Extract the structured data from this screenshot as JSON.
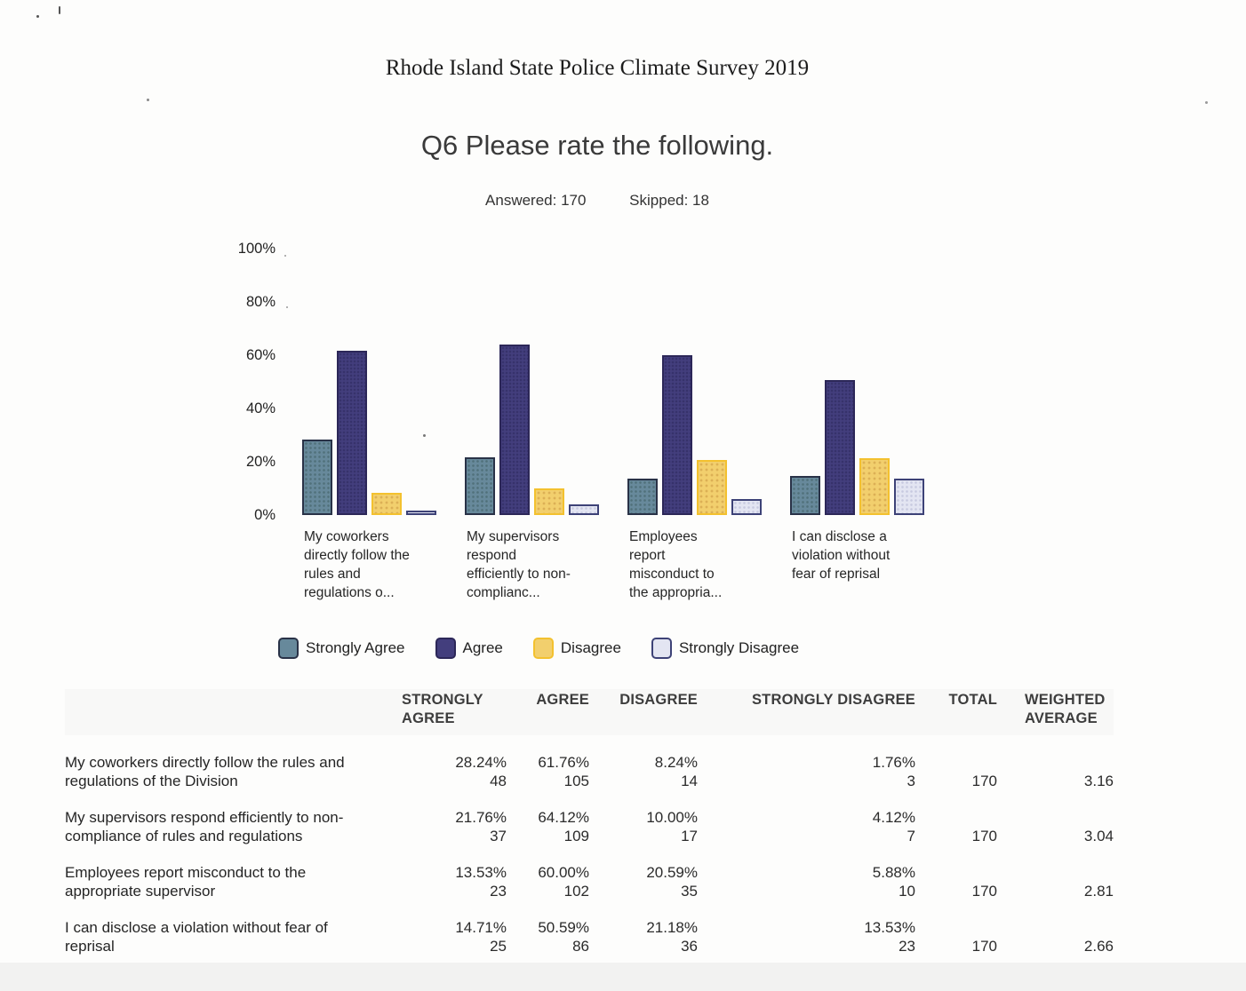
{
  "page": {
    "report_title": "Rhode Island State Police Climate Survey 2019",
    "question_title": "Q6 Please rate the following.",
    "answered": "Answered: 170",
    "skipped": "Skipped: 18"
  },
  "chart_data": {
    "type": "bar",
    "title": "Q6 Please rate the following.",
    "categories": [
      "My coworkers directly follow the rules and regulations o...",
      "My supervisors respond efficiently to non-complianc...",
      "Employees report misconduct to the appropria...",
      "I can disclose a violation without fear of reprisal"
    ],
    "series": [
      {
        "name": "Strongly Agree",
        "values": [
          28.24,
          21.76,
          13.53,
          14.71
        ],
        "fill": "#67899b",
        "border": "#293247"
      },
      {
        "name": "Agree",
        "values": [
          61.76,
          64.12,
          60.0,
          50.59
        ],
        "fill": "#433e7d",
        "border": "#2c2758"
      },
      {
        "name": "Disagree",
        "values": [
          8.24,
          10.0,
          20.59,
          21.18
        ],
        "fill": "#f2cf6d",
        "border": "#f3c12f"
      },
      {
        "name": "Strongly Disagree",
        "values": [
          1.76,
          4.12,
          5.88,
          13.53
        ],
        "fill": "#e3e5f2",
        "border": "#3d4277"
      }
    ],
    "ylim": [
      0,
      100
    ],
    "ytick_labels": [
      "0%",
      "20%",
      "40%",
      "60%",
      "80%",
      "100%"
    ],
    "grid": false,
    "legend_position": "bottom"
  },
  "table": {
    "columns": [
      "STRONGLY AGREE",
      "AGREE",
      "DISAGREE",
      "STRONGLY DISAGREE",
      "TOTAL",
      "WEIGHTED AVERAGE"
    ],
    "rows": [
      {
        "label": "My coworkers directly follow the rules and regulations of the Division",
        "cells": [
          {
            "pct": "28.24%",
            "count": "48"
          },
          {
            "pct": "61.76%",
            "count": "105"
          },
          {
            "pct": "8.24%",
            "count": "14"
          },
          {
            "pct": "1.76%",
            "count": "3"
          }
        ],
        "total": "170",
        "weighted_average": "3.16"
      },
      {
        "label": "My supervisors respond efficiently to non-compliance of rules and regulations",
        "cells": [
          {
            "pct": "21.76%",
            "count": "37"
          },
          {
            "pct": "64.12%",
            "count": "109"
          },
          {
            "pct": "10.00%",
            "count": "17"
          },
          {
            "pct": "4.12%",
            "count": "7"
          }
        ],
        "total": "170",
        "weighted_average": "3.04"
      },
      {
        "label": "Employees report misconduct to the appropriate supervisor",
        "cells": [
          {
            "pct": "13.53%",
            "count": "23"
          },
          {
            "pct": "60.00%",
            "count": "102"
          },
          {
            "pct": "20.59%",
            "count": "35"
          },
          {
            "pct": "5.88%",
            "count": "10"
          }
        ],
        "total": "170",
        "weighted_average": "2.81"
      },
      {
        "label": "I can disclose a violation without fear of reprisal",
        "cells": [
          {
            "pct": "14.71%",
            "count": "25"
          },
          {
            "pct": "50.59%",
            "count": "86"
          },
          {
            "pct": "21.18%",
            "count": "36"
          },
          {
            "pct": "13.53%",
            "count": "23"
          }
        ],
        "total": "170",
        "weighted_average": "2.66"
      }
    ]
  }
}
